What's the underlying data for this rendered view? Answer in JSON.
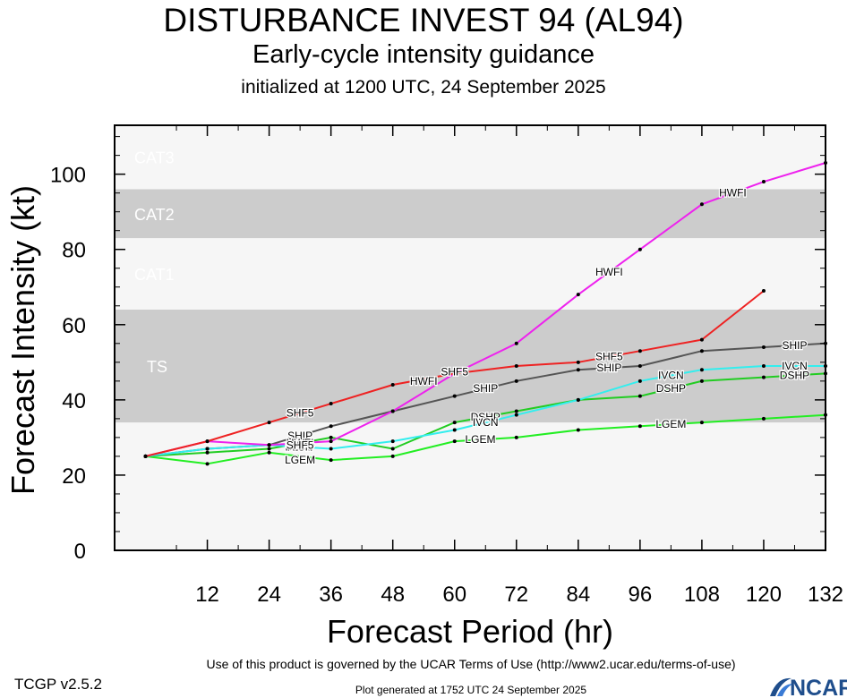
{
  "header": {
    "title": "DISTURBANCE INVEST 94 (AL94)",
    "subtitle": "Early-cycle intensity guidance",
    "initialized": "initialized at 1200 UTC, 24 September 2025"
  },
  "footer": {
    "terms": "Use of this product is governed by the UCAR Terms of Use (http://www2.ucar.edu/terms-of-use)",
    "version": "TCGP v2.5.2",
    "generated": "Plot generated at 1752 UTC   24 September 2025",
    "logo_text": "NCAR"
  },
  "chart_data": {
    "type": "line",
    "xlabel": "Forecast Period (hr)",
    "ylabel": "Forecast Intensity (kt)",
    "xlim": [
      -6,
      132
    ],
    "ylim": [
      0,
      113
    ],
    "x_ticks": [
      12,
      24,
      36,
      48,
      60,
      72,
      84,
      96,
      108,
      120,
      132
    ],
    "y_ticks": [
      0,
      20,
      40,
      60,
      80,
      100
    ],
    "grid": false,
    "bands": [
      {
        "label": "TS",
        "from": 34,
        "to": 64,
        "color": "#cccccc"
      },
      {
        "label": "CAT1",
        "from": 64,
        "to": 83,
        "color": "#f6f6f6"
      },
      {
        "label": "CAT2",
        "from": 83,
        "to": 96,
        "color": "#cccccc"
      },
      {
        "label": "CAT3",
        "from": 96,
        "to": 113,
        "color": "#f6f6f6"
      }
    ],
    "below_band_color": "#f6f6f6",
    "series": [
      {
        "name": "LGEM",
        "color": "#22ee22",
        "x": [
          0,
          12,
          24,
          36,
          48,
          60,
          72,
          84,
          96,
          108,
          120,
          132
        ],
        "y": [
          25,
          23,
          26,
          24,
          25,
          29,
          30,
          32,
          33,
          34,
          35,
          36
        ],
        "labels": [
          {
            "x": 30,
            "y": 24
          },
          {
            "x": 65,
            "y": 29.5
          },
          {
            "x": 102,
            "y": 33.5
          }
        ]
      },
      {
        "name": "DSHP",
        "color": "#22cc22",
        "x": [
          0,
          12,
          24,
          36,
          48,
          60,
          72,
          84,
          96,
          108,
          120,
          132
        ],
        "y": [
          25,
          26,
          27,
          30,
          27,
          34,
          37,
          40,
          41,
          45,
          46,
          47
        ],
        "labels": [
          {
            "x": 30,
            "y": 27.5
          },
          {
            "x": 66,
            "y": 35.5
          },
          {
            "x": 102,
            "y": 43
          },
          {
            "x": 126,
            "y": 46.5
          }
        ]
      },
      {
        "name": "SHIP",
        "color": "#555555",
        "x": [
          0,
          12,
          24,
          36,
          48,
          60,
          72,
          84,
          96,
          108,
          120,
          132
        ],
        "y": [
          25,
          27,
          28,
          33,
          37,
          41,
          45,
          48,
          49,
          53,
          54,
          55
        ],
        "labels": [
          {
            "x": 30,
            "y": 30.5
          },
          {
            "x": 66,
            "y": 43
          },
          {
            "x": 90,
            "y": 48.5
          },
          {
            "x": 126,
            "y": 54.5
          }
        ]
      },
      {
        "name": "IVCN",
        "color": "#33eeee",
        "x": [
          0,
          12,
          24,
          36,
          48,
          60,
          72,
          84,
          96,
          108,
          120,
          132
        ],
        "y": [
          25,
          27,
          28,
          27,
          29,
          32,
          36,
          40,
          45,
          48,
          49,
          49
        ],
        "labels": [
          {
            "x": 30,
            "y": 27.5
          },
          {
            "x": 66,
            "y": 34
          },
          {
            "x": 102,
            "y": 46.5
          },
          {
            "x": 126,
            "y": 49
          }
        ]
      },
      {
        "name": "HWFI",
        "color": "#ee22ee",
        "x": [
          0,
          12,
          24,
          36,
          48,
          60,
          72,
          84,
          96,
          108,
          120,
          132
        ],
        "y": [
          25,
          29,
          28,
          29,
          37,
          47,
          55,
          68,
          80,
          92,
          98,
          103
        ],
        "labels": [
          {
            "x": 30,
            "y": 28.5
          },
          {
            "x": 54,
            "y": 45
          },
          {
            "x": 90,
            "y": 74
          },
          {
            "x": 114,
            "y": 95
          }
        ]
      },
      {
        "name": "SHF5",
        "color": "#ee2222",
        "x": [
          0,
          12,
          24,
          36,
          48,
          60,
          72,
          84,
          96,
          108,
          120
        ],
        "y": [
          25,
          29,
          34,
          39,
          44,
          47,
          49,
          50,
          53,
          56,
          69
        ],
        "labels": [
          {
            "x": 30,
            "y": 36.5
          },
          {
            "x": 30,
            "y": 28
          },
          {
            "x": 60,
            "y": 47.5
          },
          {
            "x": 90,
            "y": 51.5
          }
        ]
      }
    ]
  }
}
